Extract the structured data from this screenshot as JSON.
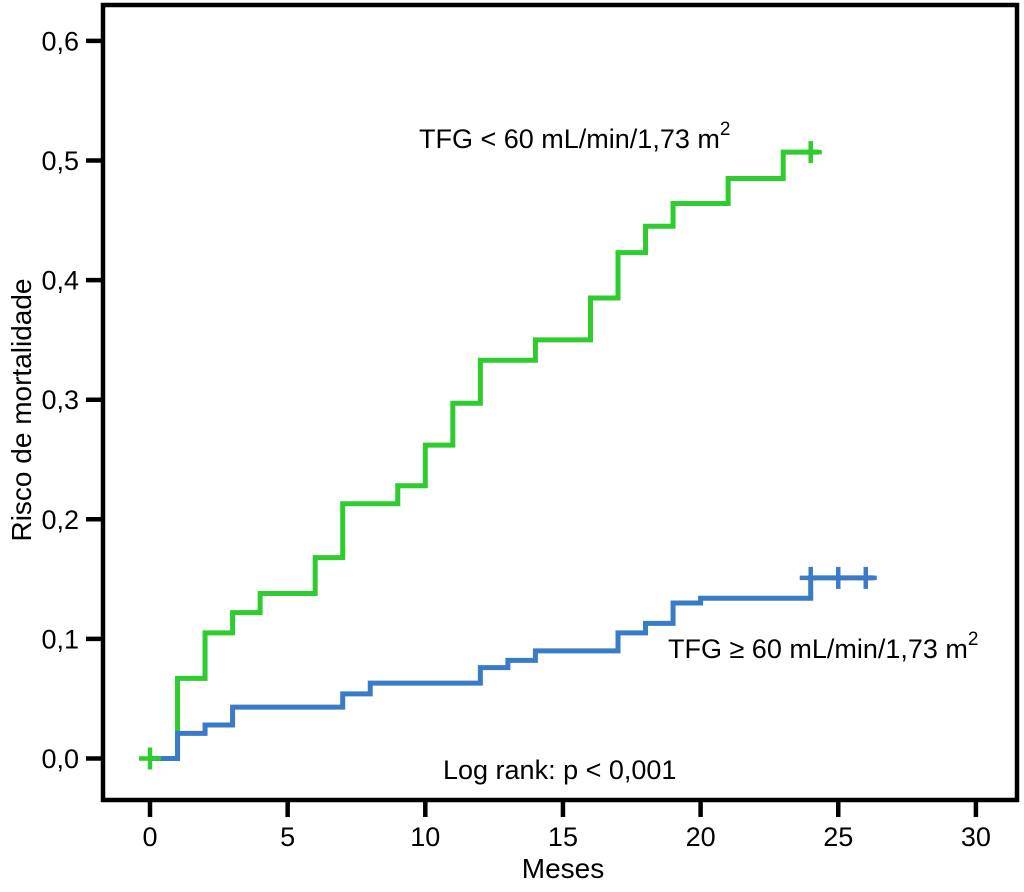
{
  "figure": {
    "background_color": "#ffffff",
    "frame_color": "#000000"
  },
  "chart_data": {
    "type": "line",
    "subtype": "kaplan-meier-cumulative-risk-step",
    "title": "",
    "xlabel": "Meses",
    "ylabel": "Risco de mortalidade",
    "annotation": "Log rank: p < 0,001",
    "xlim": [
      0,
      30
    ],
    "ylim": [
      0.0,
      0.6
    ],
    "grid": false,
    "legend_position": "inline-labels",
    "x_ticks": [
      {
        "label": "0",
        "value": 0
      },
      {
        "label": "5",
        "value": 5
      },
      {
        "label": "10",
        "value": 10
      },
      {
        "label": "15",
        "value": 15
      },
      {
        "label": "20",
        "value": 20
      },
      {
        "label": "25",
        "value": 25
      },
      {
        "label": "30",
        "value": 30
      }
    ],
    "y_ticks": [
      {
        "label": "0,0",
        "value": 0.0
      },
      {
        "label": "0,1",
        "value": 0.1
      },
      {
        "label": "0,2",
        "value": 0.2
      },
      {
        "label": "0,3",
        "value": 0.3
      },
      {
        "label": "0,4",
        "value": 0.4
      },
      {
        "label": "0,5",
        "value": 0.5
      },
      {
        "label": "0,6",
        "value": 0.6
      }
    ],
    "series": [
      {
        "name": "TFG < 60 mL/min/1,73 m²",
        "label_text": "TFG < 60 mL/min/1,73 m",
        "label_sup": "2",
        "color": "#2ecc2e",
        "steps": [
          [
            0,
            0.0
          ],
          [
            1,
            0.067
          ],
          [
            2,
            0.105
          ],
          [
            3,
            0.122
          ],
          [
            4,
            0.138
          ],
          [
            6,
            0.168
          ],
          [
            7,
            0.213
          ],
          [
            9,
            0.228
          ],
          [
            10,
            0.262
          ],
          [
            11,
            0.297
          ],
          [
            12,
            0.333
          ],
          [
            14,
            0.35
          ],
          [
            16,
            0.385
          ],
          [
            17,
            0.423
          ],
          [
            18,
            0.445
          ],
          [
            19,
            0.464
          ],
          [
            21,
            0.485
          ],
          [
            23,
            0.507
          ]
        ],
        "end_x": 24.3,
        "censor_marks": [
          [
            0,
            0.0
          ],
          [
            24,
            0.507
          ]
        ]
      },
      {
        "name": "TFG ≥ 60 mL/min/1,73 m²",
        "label_text": "TFG ≥ 60 mL/min/1,73 m",
        "label_sup": "2",
        "color": "#3a7bc8",
        "steps": [
          [
            0,
            0.0
          ],
          [
            1,
            0.021
          ],
          [
            2,
            0.028
          ],
          [
            3,
            0.043
          ],
          [
            7,
            0.054
          ],
          [
            8,
            0.063
          ],
          [
            12,
            0.076
          ],
          [
            13,
            0.082
          ],
          [
            14,
            0.09
          ],
          [
            17,
            0.105
          ],
          [
            18,
            0.113
          ],
          [
            19,
            0.13
          ],
          [
            20,
            0.134
          ],
          [
            24,
            0.151
          ]
        ],
        "end_x": 26.3,
        "censor_marks": [
          [
            24,
            0.151
          ],
          [
            25,
            0.151
          ],
          [
            26,
            0.151
          ]
        ]
      }
    ]
  }
}
